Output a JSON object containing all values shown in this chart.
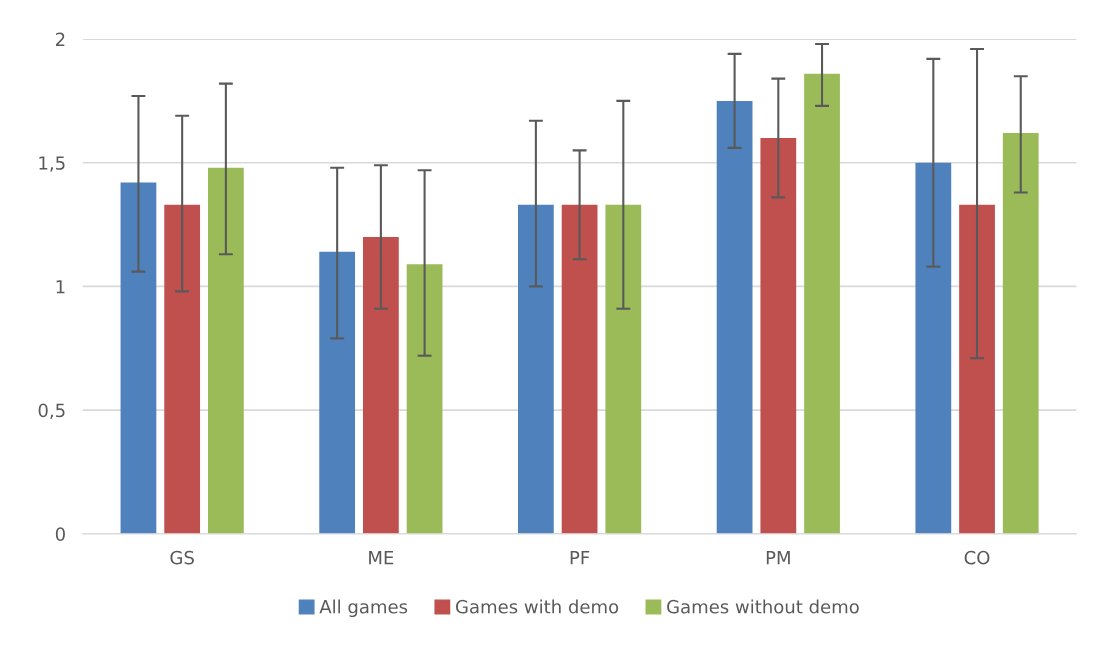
{
  "chart_data": {
    "type": "bar",
    "categories": [
      "GS",
      "ME",
      "PF",
      "PM",
      "CO"
    ],
    "series": [
      {
        "name": "All games",
        "color": "#4f81bd",
        "values": [
          1.42,
          1.14,
          1.33,
          1.75,
          1.5
        ],
        "errors": [
          [
            1.06,
            1.77
          ],
          [
            0.79,
            1.48
          ],
          [
            1.0,
            1.67
          ],
          [
            1.56,
            1.94
          ],
          [
            1.08,
            1.92
          ]
        ]
      },
      {
        "name": "Games with demo",
        "color": "#c0504d",
        "values": [
          1.33,
          1.2,
          1.33,
          1.6,
          1.33
        ],
        "errors": [
          [
            0.98,
            1.69
          ],
          [
            0.91,
            1.49
          ],
          [
            1.11,
            1.55
          ],
          [
            1.36,
            1.84
          ],
          [
            0.71,
            1.96
          ]
        ]
      },
      {
        "name": "Games without demo",
        "color": "#9bbb59",
        "values": [
          1.48,
          1.09,
          1.33,
          1.86,
          1.62
        ],
        "errors": [
          [
            1.13,
            1.82
          ],
          [
            0.72,
            1.47
          ],
          [
            0.91,
            1.75
          ],
          [
            1.73,
            1.98
          ],
          [
            1.38,
            1.85
          ]
        ]
      }
    ],
    "ylim": [
      0,
      2
    ],
    "yticks": [
      0,
      {
        "value": 0.5,
        "label": "0,5"
      },
      1,
      {
        "value": 1.5,
        "label": "1,5"
      },
      2
    ],
    "grid": "y",
    "legend": "bottom"
  }
}
